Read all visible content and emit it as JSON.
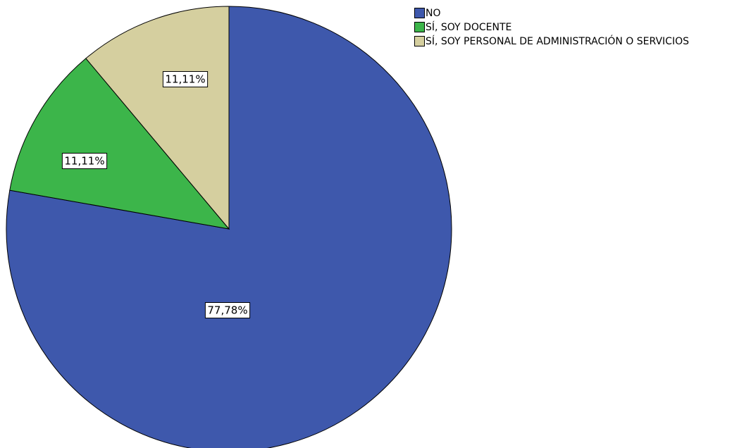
{
  "chart_data": {
    "type": "pie",
    "categories": [
      "NO",
      "SÍ, SOY DOCENTE",
      "SÍ, SOY PERSONAL DE ADMINISTRACIÓN O SERVICIOS"
    ],
    "values": [
      77.78,
      11.11,
      11.11
    ],
    "value_labels": [
      "77,78%",
      "11,11%",
      "11,11%"
    ],
    "colors": [
      "#3e58ac",
      "#3cb54a",
      "#d5cf9f"
    ]
  }
}
